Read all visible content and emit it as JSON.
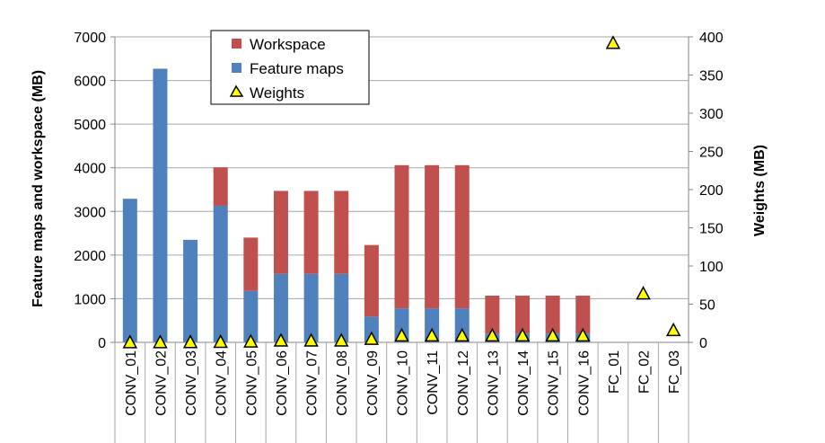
{
  "chart_data": {
    "type": "bar",
    "stacked": true,
    "categories": [
      "CONV_01",
      "CONV_02",
      "CONV_03",
      "CONV_04",
      "CONV_05",
      "CONV_06",
      "CONV_07",
      "CONV_08",
      "CONV_09",
      "CONV_10",
      "CONV_11",
      "CONV_12",
      "CONV_13",
      "CONV_14",
      "CONV_15",
      "CONV_16",
      "FC_01",
      "FC_02",
      "FC_03"
    ],
    "series": [
      {
        "name": "Feature maps",
        "axis": "left",
        "color": "#4F81BD",
        "values": [
          3290,
          6270,
          2350,
          3130,
          1180,
          1570,
          1570,
          1570,
          590,
          780,
          780,
          780,
          200,
          200,
          200,
          200,
          10,
          5,
          2
        ]
      },
      {
        "name": "Workspace",
        "axis": "left",
        "color": "#C0504D",
        "values": [
          0,
          0,
          0,
          880,
          1220,
          1900,
          1900,
          1900,
          1640,
          3280,
          3280,
          3280,
          870,
          870,
          870,
          870,
          0,
          0,
          0
        ]
      },
      {
        "name": "Weights",
        "axis": "right",
        "marker": "triangle",
        "color": "#FFFF00",
        "values": [
          0.1,
          0.2,
          0.3,
          0.6,
          1.1,
          2.3,
          2.3,
          2.3,
          4.5,
          9.0,
          9.0,
          9.0,
          9.0,
          9.0,
          9.0,
          9.0,
          392,
          64,
          16
        ]
      }
    ],
    "ylabel": "Feature maps and workspace (MB)",
    "ylabel_right": "Weights (MB)",
    "ylim": [
      0,
      7000
    ],
    "yticks": [
      "0",
      "1000",
      "2000",
      "3000",
      "4000",
      "5000",
      "6000",
      "7000"
    ],
    "ylim_right": [
      0,
      400
    ],
    "yticks_right": [
      "0",
      "50",
      "100",
      "150",
      "200",
      "250",
      "300",
      "350",
      "400"
    ],
    "grid": true,
    "legend": {
      "placement": "top-left",
      "entries": [
        "Workspace",
        "Feature maps",
        "Weights"
      ]
    }
  }
}
